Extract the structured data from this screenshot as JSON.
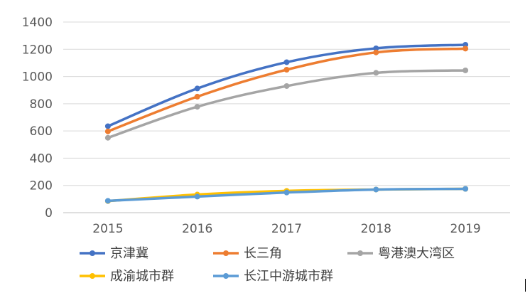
{
  "chart_data": {
    "type": "line",
    "title": "",
    "xlabel": "",
    "ylabel": "",
    "categories": [
      "2015",
      "2016",
      "2017",
      "2018",
      "2019"
    ],
    "ylim": [
      0,
      1400
    ],
    "yticks": [
      0,
      200,
      400,
      600,
      800,
      1000,
      1200,
      1400
    ],
    "grid": true,
    "legend_position": "bottom",
    "series": [
      {
        "name": "京津冀",
        "color": "#4472C4",
        "values": [
          635,
          912,
          1105,
          1207,
          1233
        ]
      },
      {
        "name": "长三角",
        "color": "#ED7D31",
        "values": [
          597,
          852,
          1050,
          1177,
          1205
        ]
      },
      {
        "name": "粤港澳大湾区",
        "color": "#A5A5A5",
        "values": [
          550,
          778,
          930,
          1027,
          1045
        ]
      },
      {
        "name": "成渝城市群",
        "color": "#FFC000",
        "values": [
          85,
          133,
          160,
          170,
          175
        ]
      },
      {
        "name": "长江中游城市群",
        "color": "#5B9BD5",
        "values": [
          87,
          118,
          148,
          170,
          175
        ]
      }
    ]
  }
}
